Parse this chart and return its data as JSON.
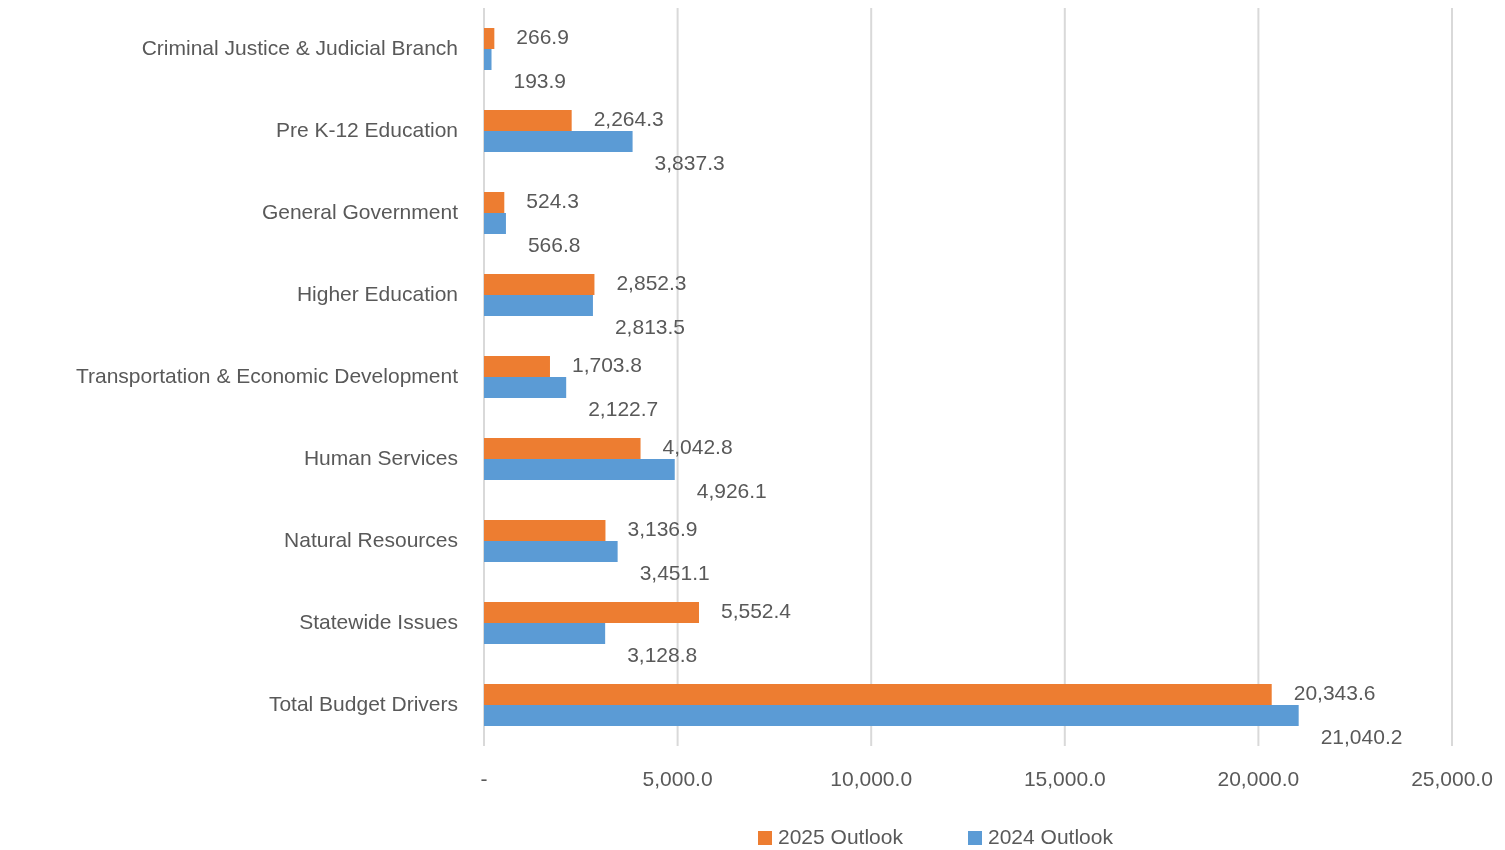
{
  "chart_data": {
    "type": "bar",
    "orientation": "horizontal",
    "categories": [
      "Criminal Justice & Judicial Branch",
      "Pre K-12 Education",
      "General Government",
      "Higher Education",
      "Transportation & Economic Development",
      "Human Services",
      "Natural Resources",
      "Statewide Issues",
      "Total Budget Drivers"
    ],
    "series": [
      {
        "name": "2025 Outlook",
        "color": "#ed7d31",
        "values": [
          266.9,
          2264.3,
          524.3,
          2852.3,
          1703.8,
          4042.8,
          3136.9,
          5552.4,
          20343.6
        ],
        "value_labels": [
          "266.9",
          "2,264.3",
          "524.3",
          "2,852.3",
          "1,703.8",
          "4,042.8",
          "3,136.9",
          "5,552.4",
          "20,343.6"
        ]
      },
      {
        "name": "2024 Outlook",
        "color": "#5b9bd5",
        "values": [
          193.9,
          3837.3,
          566.8,
          2813.5,
          2122.7,
          4926.1,
          3451.1,
          3128.8,
          21040.2
        ],
        "value_labels": [
          "193.9",
          "3,837.3",
          "566.8",
          "2,813.5",
          "2,122.7",
          "4,926.1",
          "3,451.1",
          "3,128.8",
          "21,040.2"
        ]
      }
    ],
    "xlim": [
      0,
      25000
    ],
    "xticks": [
      {
        "value": 0,
        "label": "-"
      },
      {
        "value": 5000,
        "label": "5,000.0"
      },
      {
        "value": 10000,
        "label": "10,000.0"
      },
      {
        "value": 15000,
        "label": "15,000.0"
      },
      {
        "value": 20000,
        "label": "20,000.0"
      },
      {
        "value": 25000,
        "label": "25,000.0"
      }
    ],
    "grid": "x",
    "legend": "bottom"
  }
}
